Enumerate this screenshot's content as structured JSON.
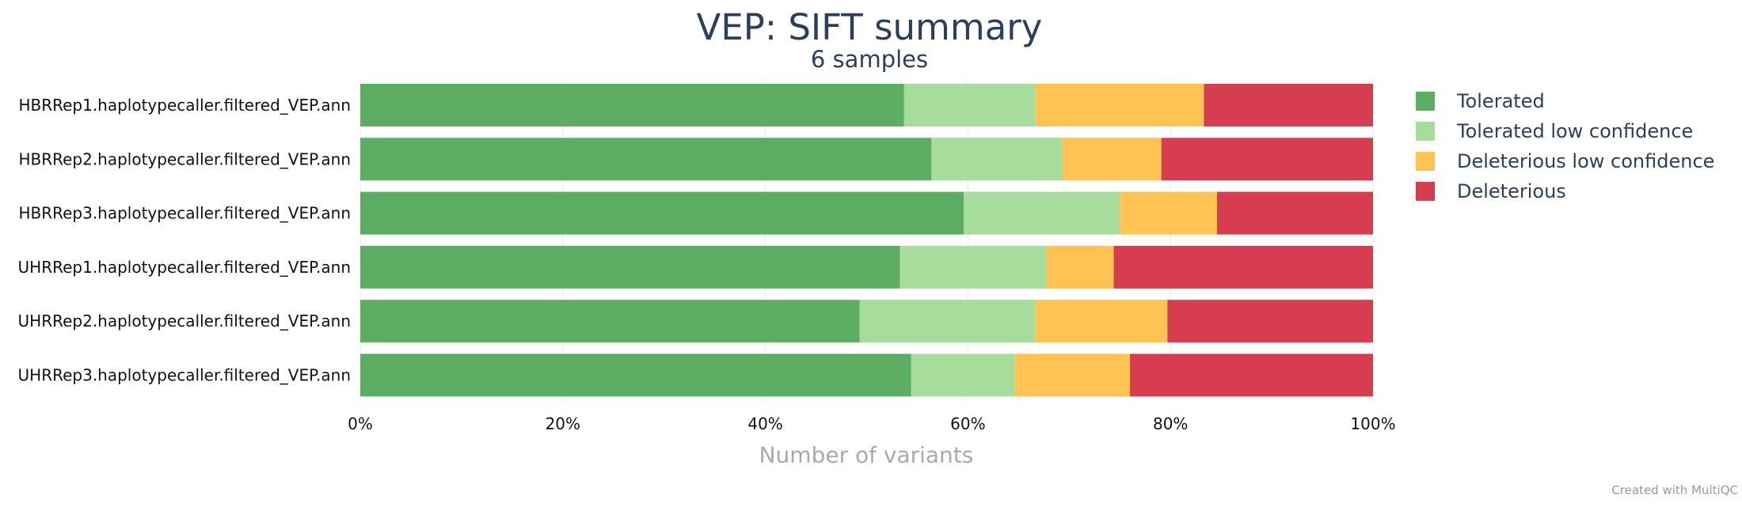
{
  "chart_data": {
    "type": "bar",
    "orientation": "horizontal",
    "stacked": true,
    "normalized": true,
    "title": "VEP: SIFT summary",
    "subtitle": "6 samples",
    "xlabel": "Number of variants",
    "xlim": [
      0,
      100
    ],
    "xticks": [
      "0%",
      "20%",
      "40%",
      "60%",
      "80%",
      "100%"
    ],
    "grid": true,
    "legend_position": "right",
    "categories": [
      "HBRRep1.haplotypecaller.filtered_VEP.ann",
      "HBRRep2.haplotypecaller.filtered_VEP.ann",
      "HBRRep3.haplotypecaller.filtered_VEP.ann",
      "UHRRep1.haplotypecaller.filtered_VEP.ann",
      "UHRRep2.haplotypecaller.filtered_VEP.ann",
      "UHRRep3.haplotypecaller.filtered_VEP.ann"
    ],
    "series": [
      {
        "name": "Tolerated",
        "color": "#5cae63",
        "values": [
          53.7,
          56.4,
          59.6,
          53.3,
          49.3,
          54.4
        ]
      },
      {
        "name": "Tolerated low confidence",
        "color": "#a6dc9c",
        "values": [
          13.0,
          12.9,
          15.4,
          14.4,
          17.4,
          10.2
        ]
      },
      {
        "name": "Deleterious low confidence",
        "color": "#ffc353",
        "values": [
          16.6,
          9.8,
          9.6,
          6.7,
          13.0,
          11.4
        ]
      },
      {
        "name": "Deleterious",
        "color": "#d63e4f",
        "values": [
          16.7,
          20.9,
          15.4,
          25.6,
          20.3,
          24.0
        ]
      }
    ]
  },
  "footer": {
    "credit": "Created with MultiQC"
  }
}
